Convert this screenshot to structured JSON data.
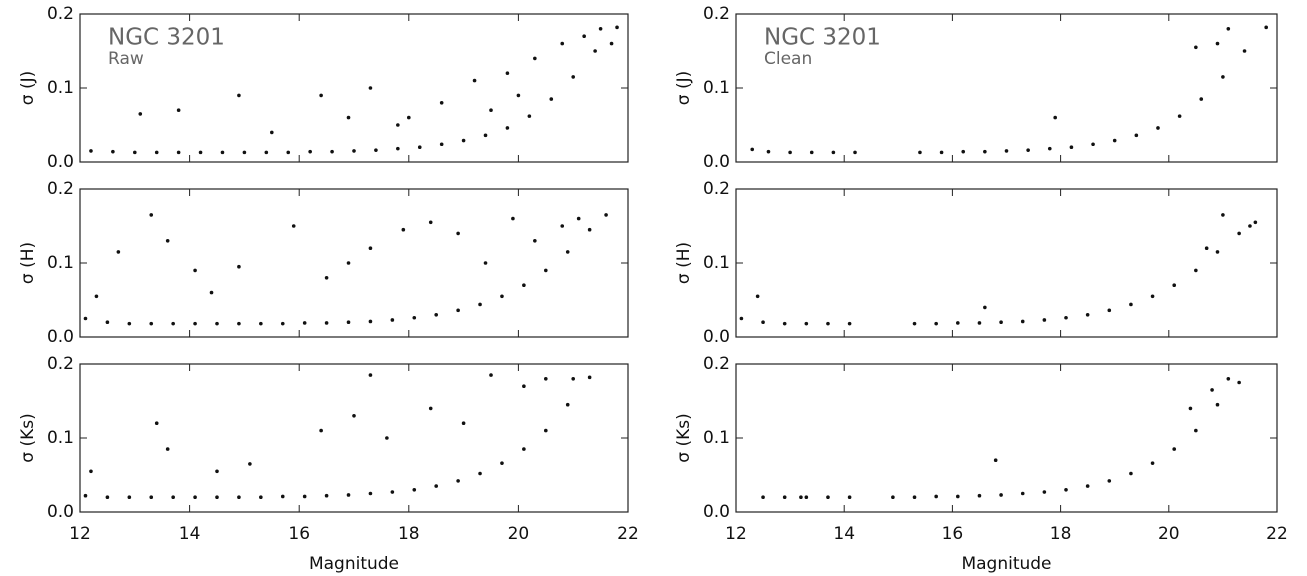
{
  "chart_data": [
    {
      "type": "scatter",
      "title": "NGC 3201",
      "subtitle": "Raw",
      "ylabel": "σ (J)",
      "color": "#111111",
      "xlim": [
        12,
        22
      ],
      "ylim": [
        0,
        0.2
      ],
      "xticks": [
        12,
        14,
        16,
        18,
        20,
        22
      ],
      "xtick_labels": false,
      "yticks": [
        {
          "value": 0,
          "label": "0.0"
        },
        0.1,
        0.2
      ],
      "x": [
        12.2,
        12.6,
        13.0,
        13.4,
        13.8,
        14.2,
        14.6,
        15.0,
        15.4,
        15.8,
        16.2,
        16.6,
        17.0,
        17.4,
        17.8,
        18.2,
        18.6,
        19.0,
        19.4,
        19.8,
        20.2,
        20.6,
        21.0,
        21.4,
        21.8,
        13.1,
        13.8,
        14.9,
        16.4,
        17.3,
        18.0,
        18.6,
        19.2,
        19.8,
        20.3,
        20.8,
        21.2,
        21.5,
        20.0,
        19.5,
        17.8,
        16.9,
        15.5,
        21.7
      ],
      "values": [
        0.015,
        0.014,
        0.013,
        0.013,
        0.013,
        0.013,
        0.013,
        0.013,
        0.013,
        0.013,
        0.014,
        0.014,
        0.015,
        0.016,
        0.018,
        0.02,
        0.024,
        0.029,
        0.036,
        0.046,
        0.062,
        0.085,
        0.115,
        0.15,
        0.182,
        0.065,
        0.07,
        0.09,
        0.09,
        0.1,
        0.06,
        0.08,
        0.11,
        0.12,
        0.14,
        0.16,
        0.17,
        0.18,
        0.09,
        0.07,
        0.05,
        0.06,
        0.04,
        0.16
      ]
    },
    {
      "type": "scatter",
      "title": "NGC 3201",
      "subtitle": "Clean",
      "ylabel": "σ (J)",
      "color": "#111111",
      "xlim": [
        12,
        22
      ],
      "ylim": [
        0,
        0.2
      ],
      "xticks": [
        12,
        14,
        16,
        18,
        20,
        22
      ],
      "xtick_labels": false,
      "yticks": [
        {
          "value": 0,
          "label": "0.0"
        },
        0.1,
        0.2
      ],
      "x": [
        12.3,
        12.6,
        13.0,
        13.4,
        13.8,
        14.2,
        15.4,
        15.8,
        16.2,
        16.6,
        17.0,
        17.4,
        17.8,
        18.2,
        18.6,
        19.0,
        19.4,
        19.8,
        20.2,
        20.6,
        21.0,
        21.4,
        21.8,
        17.9,
        20.5,
        21.1,
        20.9
      ],
      "values": [
        0.017,
        0.014,
        0.013,
        0.013,
        0.013,
        0.013,
        0.013,
        0.013,
        0.014,
        0.014,
        0.015,
        0.016,
        0.018,
        0.02,
        0.024,
        0.029,
        0.036,
        0.046,
        0.062,
        0.085,
        0.115,
        0.15,
        0.182,
        0.06,
        0.155,
        0.18,
        0.16
      ]
    },
    {
      "type": "scatter",
      "ylabel": "σ (H)",
      "color": "#111111",
      "xlim": [
        12,
        22
      ],
      "ylim": [
        0,
        0.2
      ],
      "xticks": [
        12,
        14,
        16,
        18,
        20,
        22
      ],
      "xtick_labels": false,
      "yticks": [
        {
          "value": 0,
          "label": "0.0"
        },
        0.1,
        0.2
      ],
      "x": [
        12.1,
        12.5,
        12.9,
        13.3,
        13.7,
        14.1,
        14.5,
        14.9,
        15.3,
        15.7,
        16.1,
        16.5,
        16.9,
        17.3,
        17.7,
        18.1,
        18.5,
        18.9,
        19.3,
        19.7,
        20.1,
        20.5,
        20.9,
        21.3,
        21.6,
        12.3,
        12.7,
        13.3,
        13.6,
        14.1,
        14.4,
        14.9,
        15.9,
        16.5,
        16.9,
        17.3,
        17.9,
        18.4,
        18.9,
        19.4,
        19.9,
        20.3,
        20.8,
        21.1
      ],
      "values": [
        0.025,
        0.02,
        0.018,
        0.018,
        0.018,
        0.018,
        0.018,
        0.018,
        0.018,
        0.018,
        0.019,
        0.019,
        0.02,
        0.021,
        0.023,
        0.026,
        0.03,
        0.036,
        0.044,
        0.055,
        0.07,
        0.09,
        0.115,
        0.145,
        0.165,
        0.055,
        0.115,
        0.165,
        0.13,
        0.09,
        0.06,
        0.095,
        0.15,
        0.08,
        0.1,
        0.12,
        0.145,
        0.155,
        0.14,
        0.1,
        0.16,
        0.13,
        0.15,
        0.16
      ]
    },
    {
      "type": "scatter",
      "ylabel": "σ (H)",
      "color": "#111111",
      "xlim": [
        12,
        22
      ],
      "ylim": [
        0,
        0.2
      ],
      "xticks": [
        12,
        14,
        16,
        18,
        20,
        22
      ],
      "xtick_labels": false,
      "yticks": [
        {
          "value": 0,
          "label": "0.0"
        },
        0.1,
        0.2
      ],
      "x": [
        12.1,
        12.5,
        12.9,
        13.3,
        13.7,
        14.1,
        15.3,
        15.7,
        16.1,
        16.5,
        16.9,
        17.3,
        17.7,
        18.1,
        18.5,
        18.9,
        19.3,
        19.7,
        20.1,
        20.5,
        20.9,
        21.3,
        21.6,
        12.4,
        16.6,
        21.0,
        21.5,
        20.7
      ],
      "values": [
        0.025,
        0.02,
        0.018,
        0.018,
        0.018,
        0.018,
        0.018,
        0.018,
        0.019,
        0.019,
        0.02,
        0.021,
        0.023,
        0.026,
        0.03,
        0.036,
        0.044,
        0.055,
        0.07,
        0.09,
        0.115,
        0.14,
        0.155,
        0.055,
        0.04,
        0.165,
        0.15,
        0.12
      ]
    },
    {
      "type": "scatter",
      "ylabel": "σ (Ks)",
      "xlabel": "Magnitude",
      "color": "#111111",
      "xlim": [
        12,
        22
      ],
      "ylim": [
        0,
        0.2
      ],
      "xticks": [
        12,
        14,
        16,
        18,
        20,
        22
      ],
      "xtick_labels": true,
      "yticks": [
        {
          "value": 0,
          "label": "0.0"
        },
        0.1,
        0.2
      ],
      "x": [
        12.1,
        12.5,
        12.9,
        13.3,
        13.7,
        14.1,
        14.5,
        14.9,
        15.3,
        15.7,
        16.1,
        16.5,
        16.9,
        17.3,
        17.7,
        18.1,
        18.5,
        18.9,
        19.3,
        19.7,
        20.1,
        20.5,
        20.9,
        21.3,
        12.2,
        13.4,
        13.6,
        14.5,
        15.1,
        16.4,
        17.0,
        17.3,
        17.6,
        18.4,
        19.0,
        19.5,
        20.1,
        20.5,
        21.0
      ],
      "values": [
        0.022,
        0.02,
        0.02,
        0.02,
        0.02,
        0.02,
        0.02,
        0.02,
        0.02,
        0.021,
        0.021,
        0.022,
        0.023,
        0.025,
        0.027,
        0.03,
        0.035,
        0.042,
        0.052,
        0.066,
        0.085,
        0.11,
        0.145,
        0.182,
        0.055,
        0.12,
        0.085,
        0.055,
        0.065,
        0.11,
        0.13,
        0.185,
        0.1,
        0.14,
        0.12,
        0.185,
        0.17,
        0.18,
        0.18
      ]
    },
    {
      "type": "scatter",
      "ylabel": "σ (Ks)",
      "xlabel": "Magnitude",
      "color": "#111111",
      "xlim": [
        12,
        22
      ],
      "ylim": [
        0,
        0.2
      ],
      "xticks": [
        12,
        14,
        16,
        18,
        20,
        22
      ],
      "xtick_labels": true,
      "yticks": [
        {
          "value": 0,
          "label": "0.0"
        },
        0.1,
        0.2
      ],
      "x": [
        12.5,
        12.9,
        13.3,
        13.7,
        14.1,
        14.9,
        15.3,
        15.7,
        16.1,
        16.5,
        16.9,
        17.3,
        17.7,
        18.1,
        18.5,
        18.9,
        19.3,
        19.7,
        20.1,
        20.5,
        20.9,
        21.3,
        13.2,
        16.8,
        20.4,
        21.1,
        20.8
      ],
      "values": [
        0.02,
        0.02,
        0.02,
        0.02,
        0.02,
        0.02,
        0.02,
        0.021,
        0.021,
        0.022,
        0.023,
        0.025,
        0.027,
        0.03,
        0.035,
        0.042,
        0.052,
        0.066,
        0.085,
        0.11,
        0.145,
        0.175,
        0.02,
        0.07,
        0.14,
        0.18,
        0.165
      ]
    }
  ]
}
